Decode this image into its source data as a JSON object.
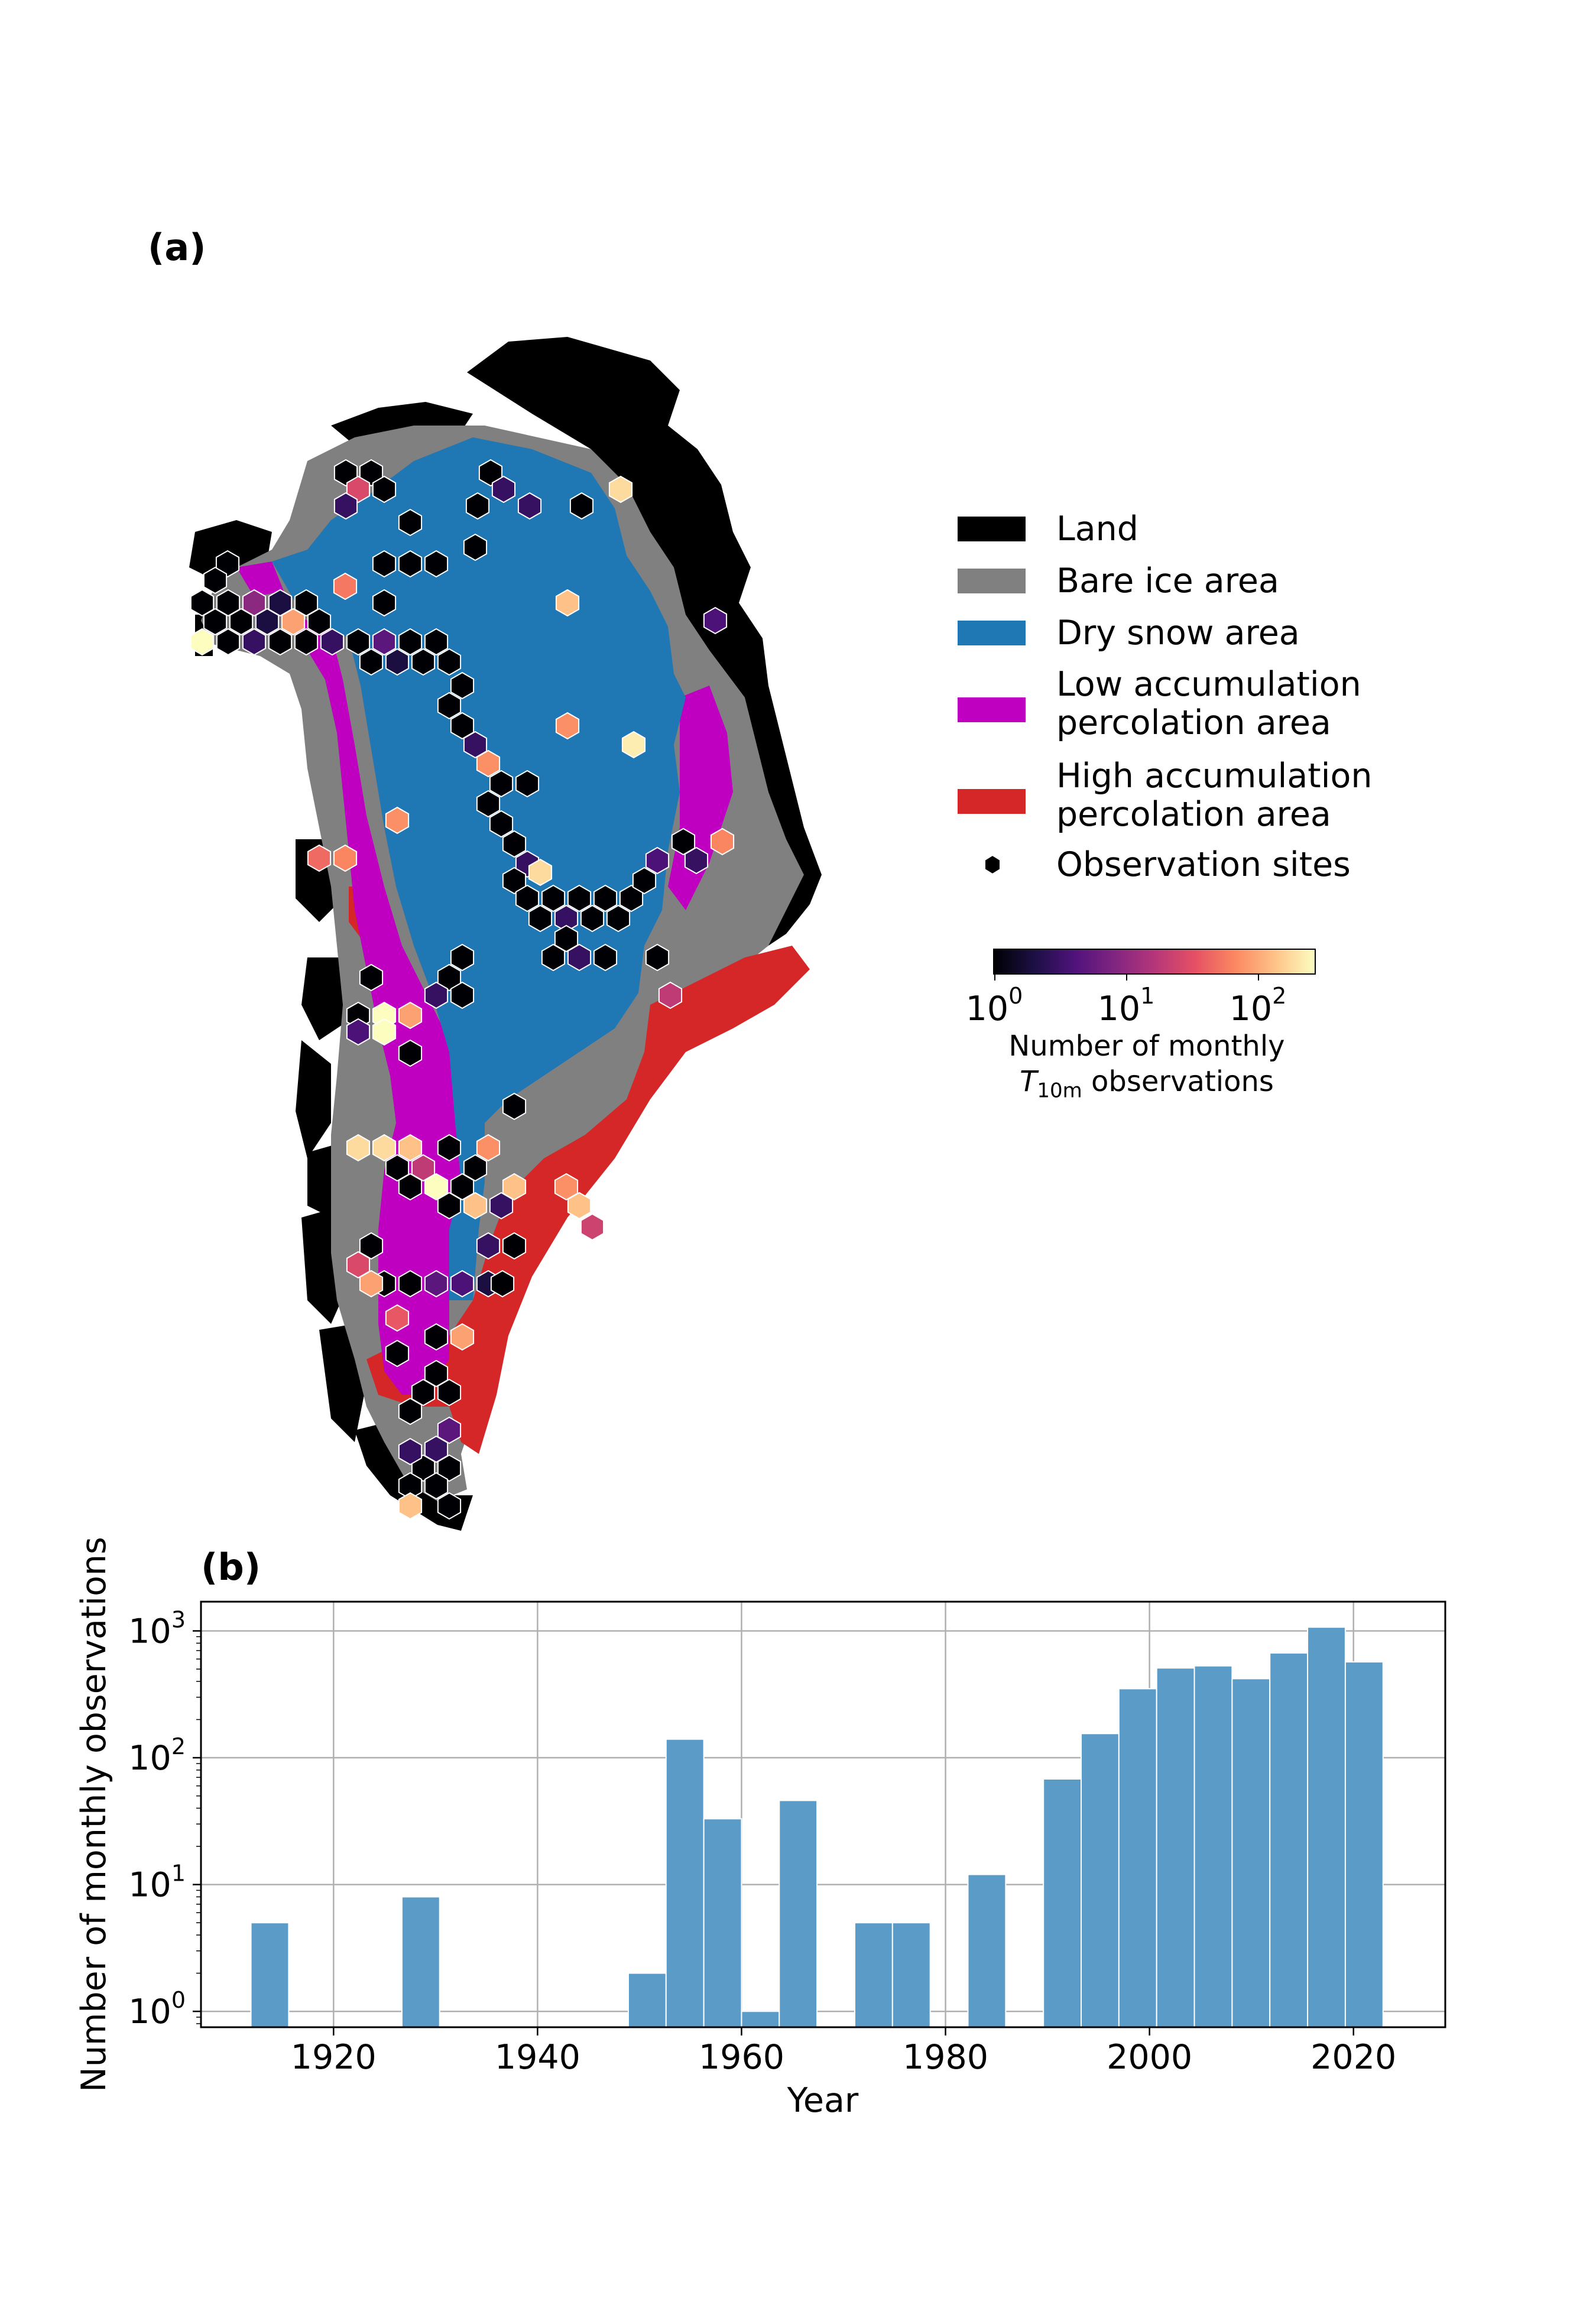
{
  "panel_a_label": "(a)",
  "panel_b_label": "(b)",
  "legend": {
    "items": [
      {
        "label": "Land",
        "color": "#000000"
      },
      {
        "label": "Bare ice area",
        "color": "#808080"
      },
      {
        "label": "Dry snow area",
        "color": "#1f77b4"
      },
      {
        "label_line1": "Low accumulation",
        "label_line2": "percolation area",
        "color": "#c000c0"
      },
      {
        "label_line1": "High accumulation",
        "label_line2": "percolation area",
        "color": "#d62728"
      },
      {
        "label": "Observation sites",
        "icon": "hexagon-icon"
      }
    ]
  },
  "colorbar": {
    "ticks": [
      {
        "base": "10",
        "exp": "0"
      },
      {
        "base": "10",
        "exp": "1"
      },
      {
        "base": "10",
        "exp": "2"
      }
    ],
    "label_line1": "Number of monthly",
    "label_line2_var": "T",
    "label_line2_sub": "10m",
    "label_line2_rest": " observations",
    "colormap": "magma",
    "scale": "log"
  },
  "chart_data": {
    "type": "bar",
    "xlabel": "Year",
    "ylabel": "Number of monthly observations",
    "yscale": "log",
    "xlim": [
      1907,
      2029
    ],
    "ylim": [
      0.75,
      1700
    ],
    "xticks": [
      1920,
      1940,
      1960,
      1980,
      2000,
      2020
    ],
    "yticks": [
      {
        "base": "10",
        "exp": "0"
      },
      {
        "base": "10",
        "exp": "1"
      },
      {
        "base": "10",
        "exp": "2"
      },
      {
        "base": "10",
        "exp": "3"
      }
    ],
    "grid": true,
    "bar_color": "#5b9bc8",
    "bin_width": 3.7,
    "bins": [
      {
        "x": 1911.9,
        "value": 5
      },
      {
        "x": 1926.7,
        "value": 8
      },
      {
        "x": 1948.9,
        "value": 2
      },
      {
        "x": 1952.6,
        "value": 140
      },
      {
        "x": 1956.3,
        "value": 33
      },
      {
        "x": 1960.0,
        "value": 1
      },
      {
        "x": 1963.7,
        "value": 46
      },
      {
        "x": 1971.1,
        "value": 5
      },
      {
        "x": 1974.8,
        "value": 5
      },
      {
        "x": 1982.2,
        "value": 12
      },
      {
        "x": 1989.6,
        "value": 68
      },
      {
        "x": 1993.3,
        "value": 155
      },
      {
        "x": 1997.0,
        "value": 350
      },
      {
        "x": 2000.7,
        "value": 510
      },
      {
        "x": 2004.4,
        "value": 530
      },
      {
        "x": 2008.1,
        "value": 420
      },
      {
        "x": 2011.8,
        "value": 670
      },
      {
        "x": 2015.5,
        "value": 1070
      },
      {
        "x": 2019.2,
        "value": 570
      }
    ]
  },
  "map_sites": [
    {
      "x": 585,
      "y": 800,
      "v": 1
    },
    {
      "x": 628,
      "y": 800,
      "v": 1
    },
    {
      "x": 650,
      "y": 828,
      "v": 1
    },
    {
      "x": 606,
      "y": 828,
      "v": 30
    },
    {
      "x": 585,
      "y": 856,
      "v": 3
    },
    {
      "x": 830,
      "y": 800,
      "v": 1
    },
    {
      "x": 852,
      "y": 828,
      "v": 3
    },
    {
      "x": 808,
      "y": 856,
      "v": 1
    },
    {
      "x": 896,
      "y": 856,
      "v": 3
    },
    {
      "x": 984,
      "y": 856,
      "v": 1
    },
    {
      "x": 1050,
      "y": 828,
      "v": 200
    },
    {
      "x": 694,
      "y": 884,
      "v": 1
    },
    {
      "x": 804,
      "y": 926,
      "v": 1
    },
    {
      "x": 650,
      "y": 954,
      "v": 1
    },
    {
      "x": 694,
      "y": 954,
      "v": 1
    },
    {
      "x": 738,
      "y": 954,
      "v": 1
    },
    {
      "x": 385,
      "y": 954,
      "v": 1
    },
    {
      "x": 584,
      "y": 992,
      "v": 60
    },
    {
      "x": 650,
      "y": 1020,
      "v": 1
    },
    {
      "x": 960,
      "y": 1020,
      "v": 150
    },
    {
      "x": 1210,
      "y": 1050,
      "v": 4
    },
    {
      "x": 364,
      "y": 982,
      "v": 1
    },
    {
      "x": 342,
      "y": 1020,
      "v": 1
    },
    {
      "x": 386,
      "y": 1020,
      "v": 1
    },
    {
      "x": 430,
      "y": 1020,
      "v": 10
    },
    {
      "x": 474,
      "y": 1020,
      "v": 2
    },
    {
      "x": 518,
      "y": 1020,
      "v": 1
    },
    {
      "x": 364,
      "y": 1052,
      "v": 1
    },
    {
      "x": 408,
      "y": 1052,
      "v": 1
    },
    {
      "x": 452,
      "y": 1052,
      "v": 2
    },
    {
      "x": 496,
      "y": 1052,
      "v": 100
    },
    {
      "x": 540,
      "y": 1052,
      "v": 1
    },
    {
      "x": 342,
      "y": 1086,
      "v": 300
    },
    {
      "x": 386,
      "y": 1086,
      "v": 1
    },
    {
      "x": 430,
      "y": 1086,
      "v": 3
    },
    {
      "x": 474,
      "y": 1086,
      "v": 1
    },
    {
      "x": 518,
      "y": 1086,
      "v": 1
    },
    {
      "x": 562,
      "y": 1086,
      "v": 3
    },
    {
      "x": 606,
      "y": 1086,
      "v": 1
    },
    {
      "x": 650,
      "y": 1086,
      "v": 5
    },
    {
      "x": 694,
      "y": 1086,
      "v": 1
    },
    {
      "x": 738,
      "y": 1086,
      "v": 1
    },
    {
      "x": 628,
      "y": 1120,
      "v": 1
    },
    {
      "x": 672,
      "y": 1120,
      "v": 2
    },
    {
      "x": 716,
      "y": 1120,
      "v": 1
    },
    {
      "x": 760,
      "y": 1120,
      "v": 1
    },
    {
      "x": 782,
      "y": 1160,
      "v": 1
    },
    {
      "x": 760,
      "y": 1194,
      "v": 1
    },
    {
      "x": 782,
      "y": 1228,
      "v": 1
    },
    {
      "x": 804,
      "y": 1260,
      "v": 3
    },
    {
      "x": 826,
      "y": 1292,
      "v": 80
    },
    {
      "x": 960,
      "y": 1228,
      "v": 80
    },
    {
      "x": 1072,
      "y": 1260,
      "v": 250
    },
    {
      "x": 848,
      "y": 1326,
      "v": 1
    },
    {
      "x": 892,
      "y": 1326,
      "v": 1
    },
    {
      "x": 826,
      "y": 1360,
      "v": 1
    },
    {
      "x": 848,
      "y": 1394,
      "v": 1
    },
    {
      "x": 870,
      "y": 1428,
      "v": 1
    },
    {
      "x": 672,
      "y": 1388,
      "v": 80
    },
    {
      "x": 540,
      "y": 1452,
      "v": 50
    },
    {
      "x": 584,
      "y": 1452,
      "v": 70
    },
    {
      "x": 892,
      "y": 1462,
      "v": 3
    },
    {
      "x": 914,
      "y": 1476,
      "v": 200
    },
    {
      "x": 870,
      "y": 1490,
      "v": 1
    },
    {
      "x": 892,
      "y": 1520,
      "v": 1
    },
    {
      "x": 936,
      "y": 1520,
      "v": 1
    },
    {
      "x": 980,
      "y": 1520,
      "v": 1
    },
    {
      "x": 1024,
      "y": 1520,
      "v": 1
    },
    {
      "x": 1068,
      "y": 1520,
      "v": 1
    },
    {
      "x": 914,
      "y": 1554,
      "v": 1
    },
    {
      "x": 958,
      "y": 1554,
      "v": 3
    },
    {
      "x": 1002,
      "y": 1554,
      "v": 1
    },
    {
      "x": 1046,
      "y": 1554,
      "v": 1
    },
    {
      "x": 1090,
      "y": 1490,
      "v": 1
    },
    {
      "x": 1112,
      "y": 1456,
      "v": 4
    },
    {
      "x": 1156,
      "y": 1424,
      "v": 1
    },
    {
      "x": 1178,
      "y": 1456,
      "v": 3
    },
    {
      "x": 1222,
      "y": 1424,
      "v": 70
    },
    {
      "x": 958,
      "y": 1588,
      "v": 1
    },
    {
      "x": 936,
      "y": 1620,
      "v": 1
    },
    {
      "x": 980,
      "y": 1620,
      "v": 3
    },
    {
      "x": 1024,
      "y": 1620,
      "v": 1
    },
    {
      "x": 1112,
      "y": 1620,
      "v": 1
    },
    {
      "x": 782,
      "y": 1620,
      "v": 1
    },
    {
      "x": 760,
      "y": 1654,
      "v": 1
    },
    {
      "x": 738,
      "y": 1684,
      "v": 3
    },
    {
      "x": 782,
      "y": 1684,
      "v": 1
    },
    {
      "x": 1134,
      "y": 1684,
      "v": 20
    },
    {
      "x": 628,
      "y": 1654,
      "v": 1
    },
    {
      "x": 650,
      "y": 1718,
      "v": 300
    },
    {
      "x": 606,
      "y": 1718,
      "v": 1
    },
    {
      "x": 694,
      "y": 1718,
      "v": 100
    },
    {
      "x": 606,
      "y": 1746,
      "v": 4
    },
    {
      "x": 650,
      "y": 1746,
      "v": 300
    },
    {
      "x": 694,
      "y": 1782,
      "v": 1
    },
    {
      "x": 870,
      "y": 1872,
      "v": 1
    },
    {
      "x": 606,
      "y": 1942,
      "v": 200
    },
    {
      "x": 650,
      "y": 1942,
      "v": 200
    },
    {
      "x": 694,
      "y": 1942,
      "v": 150
    },
    {
      "x": 760,
      "y": 1942,
      "v": 1
    },
    {
      "x": 826,
      "y": 1942,
      "v": 80
    },
    {
      "x": 672,
      "y": 1976,
      "v": 1
    },
    {
      "x": 716,
      "y": 1976,
      "v": 20
    },
    {
      "x": 804,
      "y": 1976,
      "v": 1
    },
    {
      "x": 694,
      "y": 2008,
      "v": 1
    },
    {
      "x": 738,
      "y": 2008,
      "v": 300
    },
    {
      "x": 782,
      "y": 2008,
      "v": 1
    },
    {
      "x": 870,
      "y": 2008,
      "v": 150
    },
    {
      "x": 958,
      "y": 2008,
      "v": 80
    },
    {
      "x": 760,
      "y": 2040,
      "v": 1
    },
    {
      "x": 804,
      "y": 2040,
      "v": 150
    },
    {
      "x": 848,
      "y": 2040,
      "v": 3
    },
    {
      "x": 980,
      "y": 2040,
      "v": 150
    },
    {
      "x": 1002,
      "y": 2076,
      "v": 25
    },
    {
      "x": 628,
      "y": 2108,
      "v": 1
    },
    {
      "x": 826,
      "y": 2108,
      "v": 3
    },
    {
      "x": 870,
      "y": 2108,
      "v": 1
    },
    {
      "x": 606,
      "y": 2140,
      "v": 30
    },
    {
      "x": 650,
      "y": 2172,
      "v": 1
    },
    {
      "x": 694,
      "y": 2172,
      "v": 1
    },
    {
      "x": 738,
      "y": 2172,
      "v": 5
    },
    {
      "x": 782,
      "y": 2172,
      "v": 4
    },
    {
      "x": 826,
      "y": 2172,
      "v": 2
    },
    {
      "x": 850,
      "y": 2172,
      "v": 1
    },
    {
      "x": 628,
      "y": 2172,
      "v": 100
    },
    {
      "x": 672,
      "y": 2230,
      "v": 40
    },
    {
      "x": 672,
      "y": 2290,
      "v": 1
    },
    {
      "x": 738,
      "y": 2262,
      "v": 1
    },
    {
      "x": 782,
      "y": 2262,
      "v": 100
    },
    {
      "x": 738,
      "y": 2324,
      "v": 1
    },
    {
      "x": 760,
      "y": 2356,
      "v": 1
    },
    {
      "x": 716,
      "y": 2356,
      "v": 1
    },
    {
      "x": 694,
      "y": 2388,
      "v": 1
    },
    {
      "x": 760,
      "y": 2420,
      "v": 5
    },
    {
      "x": 738,
      "y": 2452,
      "v": 3
    },
    {
      "x": 716,
      "y": 2484,
      "v": 1
    },
    {
      "x": 694,
      "y": 2514,
      "v": 1
    },
    {
      "x": 760,
      "y": 2484,
      "v": 1
    },
    {
      "x": 738,
      "y": 2514,
      "v": 1
    },
    {
      "x": 694,
      "y": 2456,
      "v": 3
    },
    {
      "x": 694,
      "y": 2548,
      "v": 150
    },
    {
      "x": 760,
      "y": 2548,
      "v": 1
    }
  ]
}
